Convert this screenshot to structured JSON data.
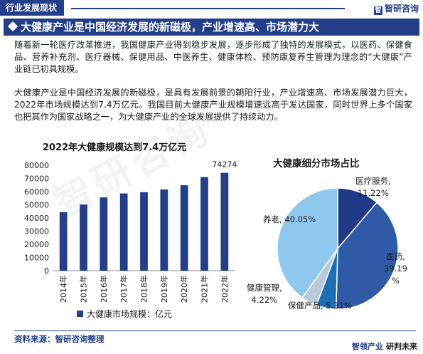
{
  "header": {
    "tag": "行业发展现状",
    "brand": "智研咨询",
    "brand_icon": "zhiyan-logo-icon"
  },
  "title": "大健康产业是中国经济发展的新磁极，产业增速高、市场潜力大",
  "paragraphs": [
    "随着新一轮医疗改革推进，我国健康产业得到稳步发展，逐步形成了独特的发展模式，以医药、保健食品、营养补充剂、医疗器械、保健用品、中医养生、健康体检、预防康复养生管理为理念的“大健康”产业链已初具规模。",
    "大健康产业是中国经济发展的新磁极，是具有发展前景的朝阳行业，产业增速高、市场发展潜力巨大，2022年市场规模达到7.4万亿元。我国目前大健康产业规模增速远高于发达国家，同时世界上多个国家也把其作为国家战略之一，为大健康产业的全球发展提供了持续动力。"
  ],
  "watermark": "智研咨询",
  "colors": {
    "brand": "#233f8a",
    "bar": "#233f8a",
    "pie_medical": "#1f3a86",
    "pie_medicine": "#2e5aa8",
    "pie_health_products": "#1a6fb5",
    "pie_health_management": "#b9c9dc",
    "pie_elderly": "#8ec8ef"
  },
  "chart_data": [
    {
      "type": "bar",
      "title": "2022年大健康规模达到7.4万亿元",
      "categories": [
        "2014年",
        "2015年",
        "2016年",
        "2017年",
        "2018年",
        "2019年",
        "2020年",
        "2021年",
        "2022年"
      ],
      "series": [
        {
          "name": "大健康市场规模：亿元",
          "values": [
            44400,
            50200,
            55600,
            58600,
            59600,
            61600,
            64800,
            71000,
            74274
          ]
        }
      ],
      "data_labels": [
        {
          "category": "2022年",
          "text": "74274"
        }
      ],
      "yticks": [
        "0",
        "10000",
        "20000",
        "30000",
        "40000",
        "50000",
        "60000",
        "70000",
        "80000"
      ],
      "ylim": [
        0,
        80000
      ],
      "grid": false,
      "legend": "bottom"
    },
    {
      "type": "pie",
      "title": "大健康细分市场占比",
      "slices": [
        {
          "name": "医疗服务",
          "value": 11.22,
          "label": [
            "医疗服务,",
            "11.22%"
          ]
        },
        {
          "name": "医药",
          "value": 39.19,
          "label": [
            "医药,",
            "39.19",
            "%"
          ]
        },
        {
          "name": "保健产品",
          "value": 5.31,
          "label": [
            "保健产品, 5.31%"
          ]
        },
        {
          "name": "健康管理",
          "value": 4.22,
          "label": [
            "健康管理,",
            "4.22%"
          ]
        },
        {
          "name": "养老",
          "value": 40.05,
          "label": [
            "养老, 40.05%"
          ]
        }
      ],
      "legend": "none"
    }
  ],
  "footer": {
    "source": "资料来源：智研咨询整理",
    "brand": "智领产业",
    "slogan": "研判未来"
  }
}
